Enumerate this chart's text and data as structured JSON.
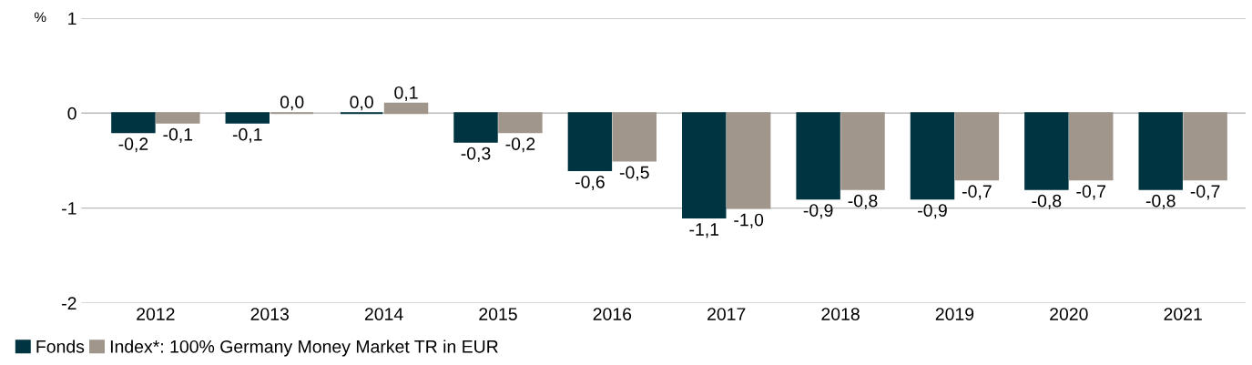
{
  "chart_data": {
    "type": "bar",
    "ylabel": "%",
    "categories": [
      "2012",
      "2013",
      "2014",
      "2015",
      "2016",
      "2017",
      "2018",
      "2019",
      "2020",
      "2021"
    ],
    "series": [
      {
        "name": "Fonds",
        "color": "#003441",
        "values": [
          -0.2,
          -0.1,
          0.0,
          -0.3,
          -0.6,
          -1.1,
          -0.9,
          -0.9,
          -0.8,
          -0.8
        ],
        "value_labels": [
          "-0,2",
          "-0,1",
          "0,0",
          "-0,3",
          "-0,6",
          "-1,1",
          "-0,9",
          "-0,9",
          "-0,8",
          "-0,8"
        ]
      },
      {
        "name": "Index*: 100% Germany Money Market TR in EUR",
        "color": "#a0968c",
        "values": [
          -0.1,
          0.0,
          0.1,
          -0.2,
          -0.5,
          -1.0,
          -0.8,
          -0.7,
          -0.7,
          -0.7
        ],
        "value_labels": [
          "-0,1",
          "0,0",
          "0,1",
          "-0,2",
          "-0,5",
          "-1,0",
          "-0,8",
          "-0,7",
          "-0,7",
          "-0,7"
        ]
      }
    ],
    "ylim": [
      -2,
      1
    ],
    "yticks": [
      -2,
      -1,
      0,
      1
    ],
    "grid": "y",
    "legend": "bottom left"
  }
}
